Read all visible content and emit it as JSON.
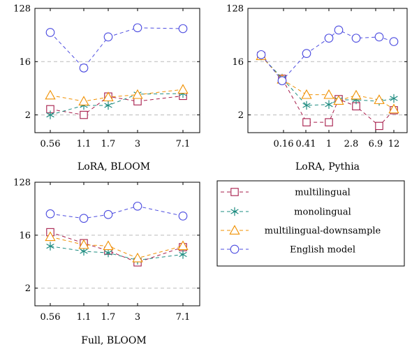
{
  "chart_data": [
    {
      "type": "line",
      "title": "LoRA, BLOOM",
      "scale": "log2",
      "ylim": [
        1,
        128
      ],
      "y_ticks": [
        "2",
        "16",
        "128"
      ],
      "x_ticks": [
        "0.56",
        "1.1",
        "1.7",
        "3",
        "7.1"
      ],
      "grid_y_values": [
        2,
        16
      ],
      "series": [
        {
          "name": "multilingual",
          "values": [
            2.5,
            2.0,
            4.1,
            3.4,
            4.2
          ]
        },
        {
          "name": "monolingual",
          "values": [
            2.0,
            2.9,
            2.9,
            4.5,
            4.6
          ]
        },
        {
          "name": "multilingual-downsample",
          "values": [
            4.3,
            3.4,
            4.0,
            4.4,
            5.4
          ]
        },
        {
          "name": "English model",
          "values": [
            50,
            12.5,
            42,
            60,
            58
          ]
        }
      ]
    },
    {
      "type": "line",
      "title": "LoRA, Pythia",
      "scale": "log2",
      "ylim": [
        1,
        128
      ],
      "y_ticks": [
        "2",
        "16",
        "128"
      ],
      "x_ticks": [
        "0.16",
        "0.41",
        "1",
        "2.8",
        "6.9",
        "12"
      ],
      "grid_y_values": [
        2,
        16
      ],
      "series": [
        {
          "name": "multilingual",
          "values": [
            20,
            8.2,
            1.5,
            1.5,
            3.7,
            2.8,
            1.3,
            2.4
          ]
        },
        {
          "name": "monolingual",
          "values": [
            20,
            8.4,
            2.9,
            3.0,
            3.6,
            3.6,
            3.4,
            3.8
          ]
        },
        {
          "name": "multilingual-downsample",
          "values": [
            20,
            8.0,
            4.4,
            4.4,
            3.5,
            4.3,
            3.6,
            2.5
          ]
        },
        {
          "name": "English model",
          "values": [
            21,
            7.6,
            22,
            40,
            55,
            40,
            42,
            35
          ]
        }
      ]
    },
    {
      "type": "line",
      "title": "Full, BLOOM",
      "scale": "log2",
      "ylim": [
        1,
        128
      ],
      "y_ticks": [
        "2",
        "16",
        "128"
      ],
      "x_ticks": [
        "0.56",
        "1.1",
        "1.7",
        "3",
        "7.1"
      ],
      "grid_y_values": [
        2,
        16
      ],
      "series": [
        {
          "name": "multilingual",
          "values": [
            18,
            11.7,
            8.7,
            5.5,
            10.0
          ]
        },
        {
          "name": "monolingual",
          "values": [
            10.4,
            8.5,
            8.0,
            6.0,
            7.5
          ]
        },
        {
          "name": "multilingual-downsample",
          "values": [
            15,
            11.0,
            10.5,
            6.5,
            10.5
          ]
        },
        {
          "name": "English model",
          "values": [
            37,
            31,
            36,
            50,
            34
          ]
        }
      ]
    }
  ],
  "legend": [
    {
      "name": "multilingual",
      "color": "#a61c4a",
      "marker": "square"
    },
    {
      "name": "monolingual",
      "color": "#1e8c80",
      "marker": "asterisk"
    },
    {
      "name": "multilingual-downsample",
      "color": "#f09000",
      "marker": "triangle"
    },
    {
      "name": "English model",
      "color": "#4d4de0",
      "marker": "circle"
    }
  ]
}
